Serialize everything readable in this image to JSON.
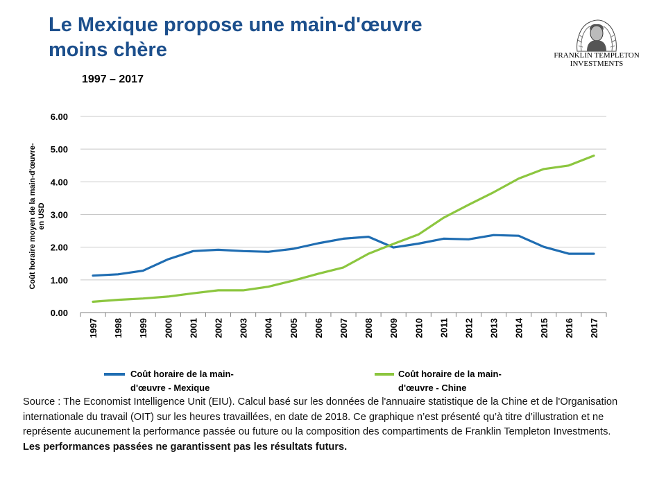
{
  "header": {
    "title_line1": "Le Mexique propose une main-d'œuvre",
    "title_line2": "moins chère",
    "period": "1997 – 2017"
  },
  "logo": {
    "line1": "FRANKLIN TEMPLETON",
    "line2": "INVESTMENTS"
  },
  "chart_data": {
    "type": "line",
    "title": "",
    "xlabel": "",
    "ylabel": "Coût horaire moyen de la main-d'œuvre en USD",
    "ylim": [
      0,
      6
    ],
    "yticks": [
      "0.00",
      "1.00",
      "2.00",
      "3.00",
      "4.00",
      "5.00",
      "6.00"
    ],
    "grid": true,
    "legend_position": "bottom",
    "categories": [
      "1997",
      "1998",
      "1999",
      "2000",
      "2001",
      "2002",
      "2003",
      "2004",
      "2005",
      "2006",
      "2007",
      "2008",
      "2009",
      "2010",
      "2011",
      "2012",
      "2013",
      "2014",
      "2015",
      "2016",
      "2017"
    ],
    "series": [
      {
        "name": "Coût horaire de la main-d'œuvre - Mexique",
        "color": "#1f6db2",
        "values": [
          1.13,
          1.17,
          1.28,
          1.63,
          1.88,
          1.92,
          1.88,
          1.86,
          1.95,
          2.12,
          2.26,
          2.32,
          1.99,
          2.11,
          2.26,
          2.24,
          2.37,
          2.35,
          2.01,
          1.8,
          1.8
        ]
      },
      {
        "name": "Coût horaire de la main-d'œuvre - Chine",
        "color": "#8cc63f",
        "values": [
          0.33,
          0.39,
          0.43,
          0.49,
          0.59,
          0.68,
          0.68,
          0.79,
          0.98,
          1.19,
          1.38,
          1.8,
          2.1,
          2.39,
          2.9,
          3.3,
          3.68,
          4.1,
          4.39,
          4.5,
          4.8
        ]
      }
    ]
  },
  "legend": {
    "mexique_line1": "Coût horaire de la main-",
    "mexique_line2": "d'œuvre - Mexique",
    "chine_line1": "Coût horaire de la main-",
    "chine_line2": "d'œuvre - Chine"
  },
  "footer": {
    "source_text": "Source : The Economist Intelligence Unit (EIU).  Calcul basé sur les données de l'annuaire statistique de la Chine et de l'Organisation internationale du travail (OIT)  sur les heures travaillées, en date de 2018. Ce graphique n’est présenté qu’à titre d’illustration  et ne représente aucunement la performance passée ou future ou la composition des compartiments de Franklin Templeton Investments. ",
    "disclaimer": "Les performances passées ne garantissent pas les résultats futurs."
  }
}
